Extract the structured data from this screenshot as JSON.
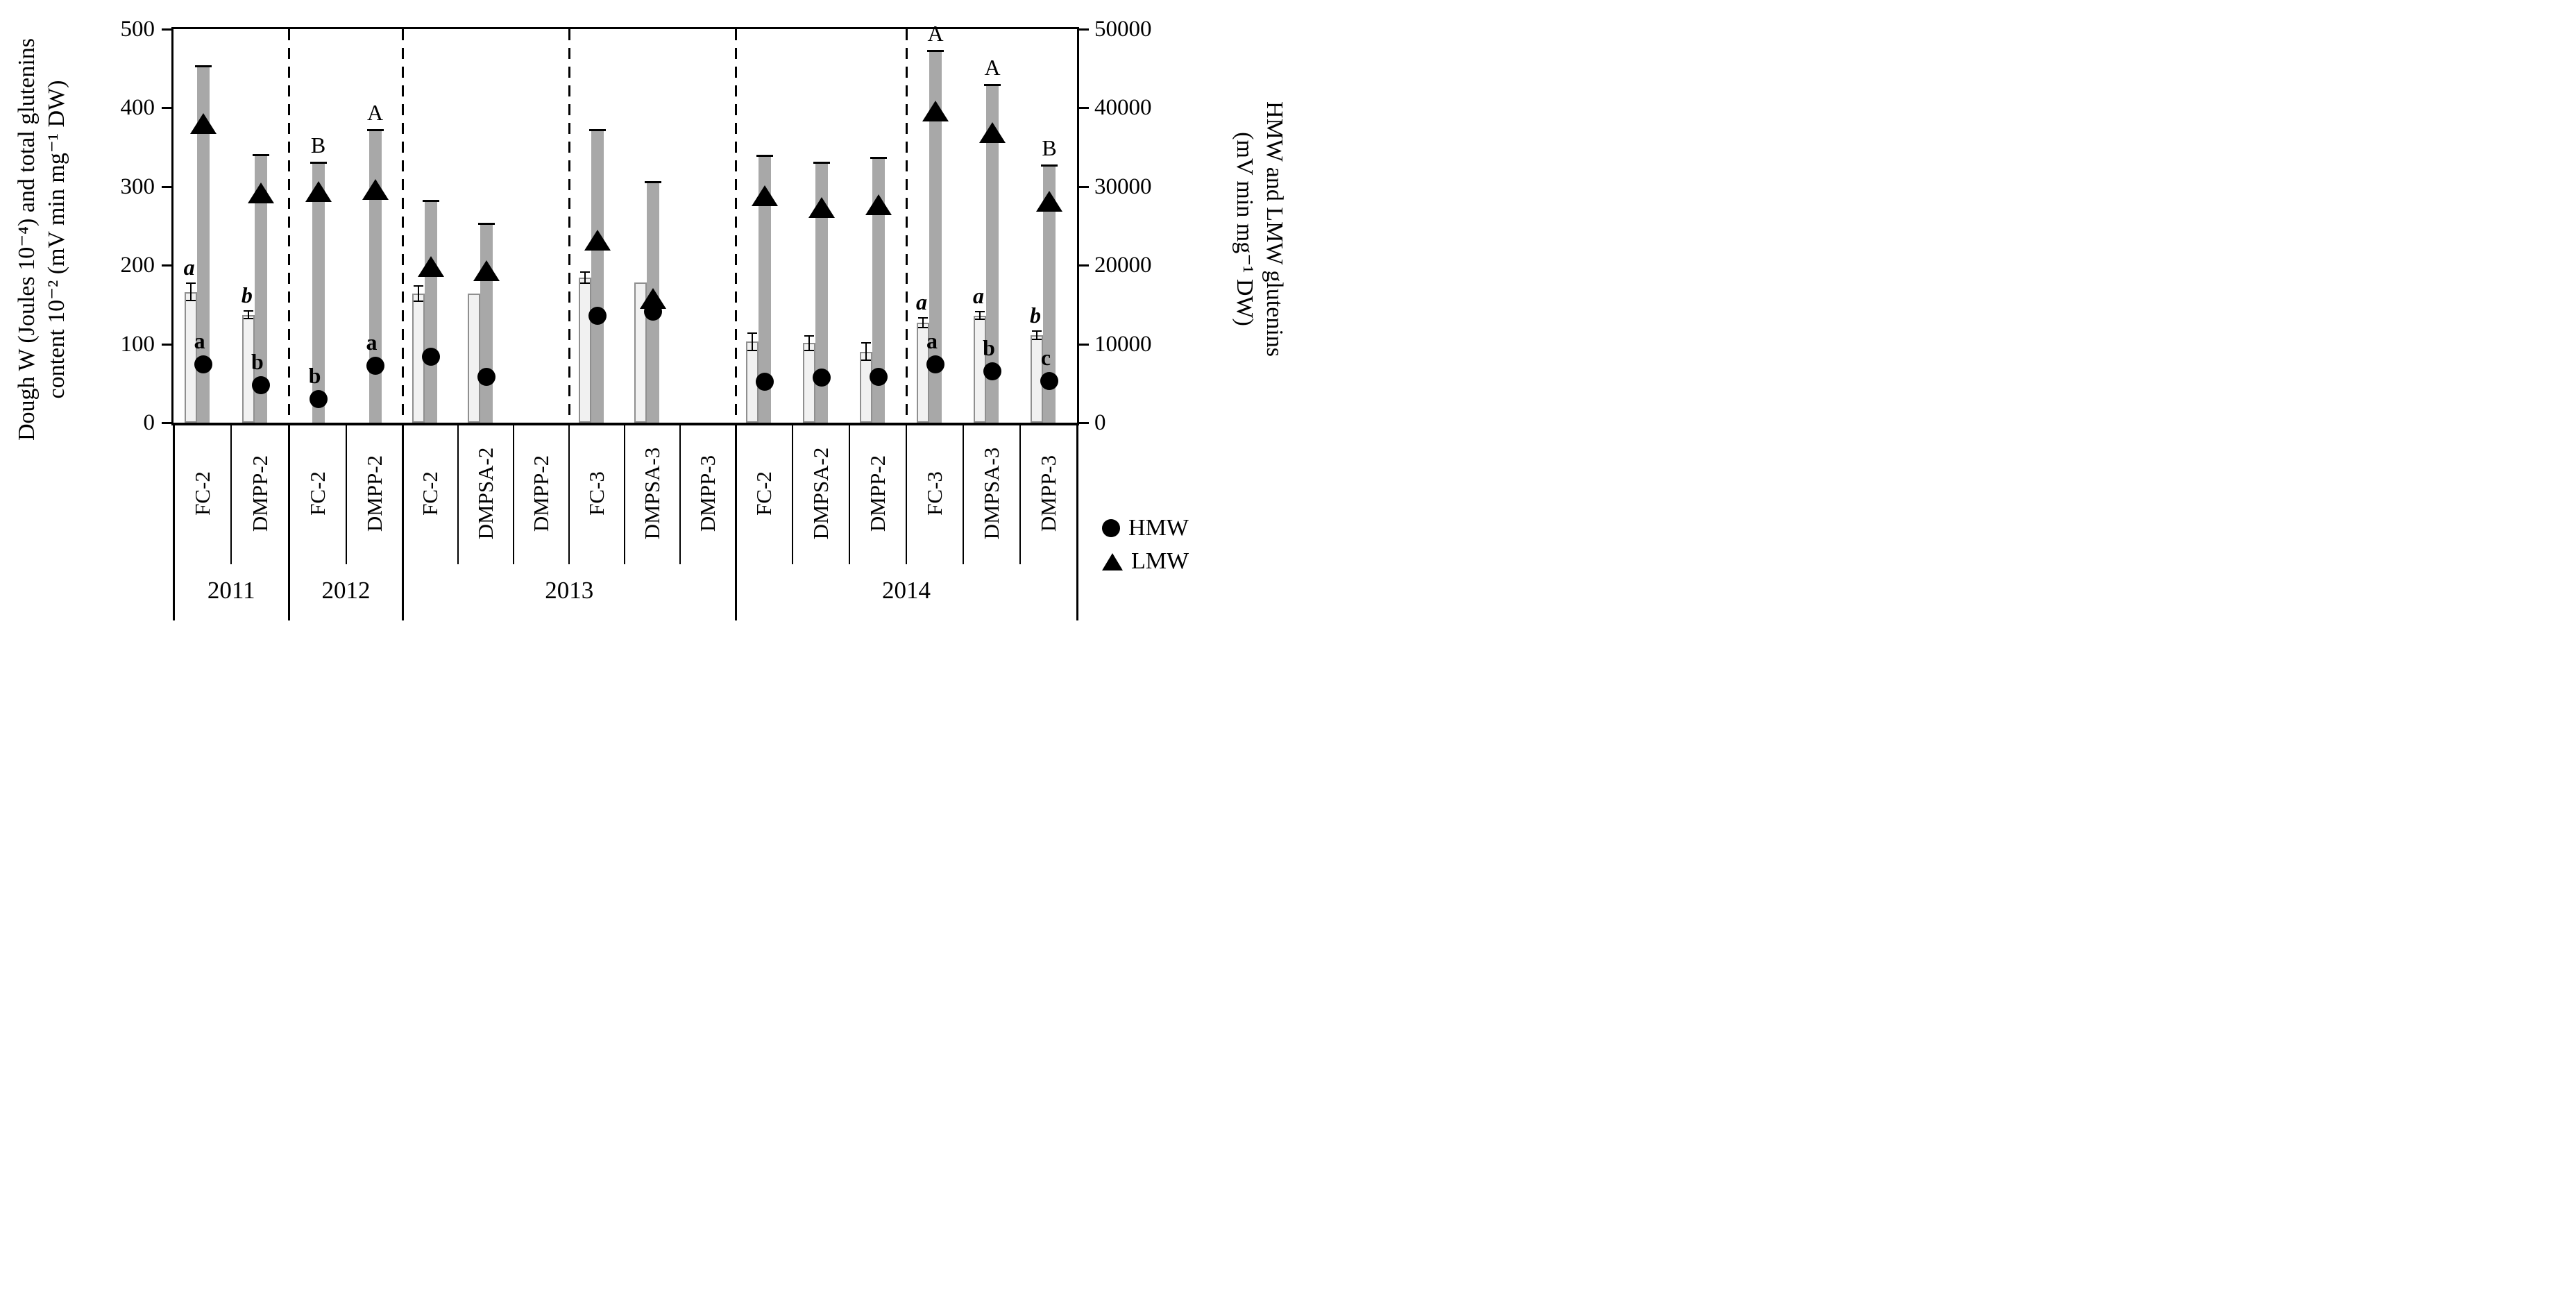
{
  "chart_data": {
    "type": "bar",
    "description_units": {
      "dough_w": "Joules 10-4 (plotted on left axis)",
      "total_glutenins": "mV min mg-1 DW (plotted as value/100 on left axis)",
      "hmw": "mV min mg-1 DW (right axis, circle marker)",
      "lmw": "mV min mg-1 DW (right axis, triangle marker)"
    },
    "left_axis": {
      "label_lines": [
        "Dough W (Joules 10⁻⁴) and total glutenins",
        "content 10⁻² (mV min mg⁻¹ DW)"
      ],
      "min": 0,
      "max": 500,
      "ticks": [
        "0",
        "100",
        "200",
        "300",
        "400",
        "500"
      ]
    },
    "right_axis": {
      "label_lines": [
        "HMW and LMW glutenins",
        "(mV min mg⁻¹ DW)"
      ],
      "min": 0,
      "max": 50000,
      "ticks": [
        "0",
        "10000",
        "20000",
        "30000",
        "40000",
        "50000"
      ]
    },
    "legend": [
      {
        "marker": "circle",
        "label": "HMW"
      },
      {
        "marker": "triangle",
        "label": "LMW"
      }
    ],
    "groups": [
      {
        "year": "2011",
        "categories": [
          {
            "label": "FC-2",
            "dough_w": 166,
            "dough_w_err": 11,
            "dough_w_letter": "a",
            "total_glutenins": 45300,
            "total_glutenins_letter": null,
            "lmw": 38000,
            "hmw": 7400,
            "hmw_letter": "a"
          },
          {
            "label": "DMPP-2",
            "dough_w": 137,
            "dough_w_err": 5,
            "dough_w_letter": "b",
            "total_glutenins": 34000,
            "total_glutenins_letter": null,
            "lmw": 29200,
            "hmw": 4800,
            "hmw_letter": "b"
          }
        ]
      },
      {
        "year": "2012",
        "categories": [
          {
            "label": "FC-2",
            "dough_w": null,
            "dough_w_err": null,
            "dough_w_letter": null,
            "total_glutenins": 33000,
            "total_glutenins_letter": "B",
            "lmw": 29300,
            "hmw": 3000,
            "hmw_letter": "b"
          },
          {
            "label": "DMPP-2",
            "dough_w": null,
            "dough_w_err": null,
            "dough_w_letter": null,
            "total_glutenins": 37200,
            "total_glutenins_letter": "A",
            "lmw": 29600,
            "hmw": 7200,
            "hmw_letter": "a"
          }
        ]
      },
      {
        "year": "2013",
        "categories": [
          {
            "label": "FC-2",
            "dough_w": 164,
            "dough_w_err": 10,
            "dough_w_letter": null,
            "total_glutenins": 28200,
            "total_glutenins_letter": null,
            "lmw": 19800,
            "hmw": 8400,
            "hmw_letter": null
          },
          {
            "label": "DMPSA-2",
            "dough_w": 164,
            "dough_w_err": null,
            "dough_w_letter": null,
            "total_glutenins": 25300,
            "total_glutenins_letter": null,
            "lmw": 19300,
            "hmw": 5800,
            "hmw_letter": null
          },
          {
            "label": "DMPP-2",
            "dough_w": null,
            "dough_w_err": null,
            "dough_w_letter": null,
            "total_glutenins": null,
            "total_glutenins_letter": null,
            "lmw": null,
            "hmw": null,
            "hmw_letter": null
          },
          {
            "label": "FC-3",
            "dough_w": 184,
            "dough_w_err": 7,
            "dough_w_letter": null,
            "total_glutenins": 37200,
            "total_glutenins_letter": null,
            "lmw": 23200,
            "hmw": 13600,
            "hmw_letter": null
          },
          {
            "label": "DMPSA-3",
            "dough_w": 178,
            "dough_w_err": null,
            "dough_w_letter": null,
            "total_glutenins": 30600,
            "total_glutenins_letter": null,
            "lmw": 15800,
            "hmw": 14100,
            "hmw_letter": null
          },
          {
            "label": "DMPP-3",
            "dough_w": null,
            "dough_w_err": null,
            "dough_w_letter": null,
            "total_glutenins": null,
            "total_glutenins_letter": null,
            "lmw": null,
            "hmw": null,
            "hmw_letter": null
          }
        ]
      },
      {
        "year": "2014",
        "categories": [
          {
            "label": "FC-2",
            "dough_w": 103,
            "dough_w_err": 11,
            "dough_w_letter": null,
            "total_glutenins": 33900,
            "total_glutenins_letter": null,
            "lmw": 28800,
            "hmw": 5200,
            "hmw_letter": null
          },
          {
            "label": "DMPSA-2",
            "dough_w": 101,
            "dough_w_err": 9,
            "dough_w_letter": null,
            "total_glutenins": 33000,
            "total_glutenins_letter": null,
            "lmw": 27300,
            "hmw": 5700,
            "hmw_letter": null
          },
          {
            "label": "DMPP-2",
            "dough_w": 90,
            "dough_w_err": 11,
            "dough_w_letter": null,
            "total_glutenins": 33700,
            "total_glutenins_letter": null,
            "lmw": 27700,
            "hmw": 5800,
            "hmw_letter": null
          },
          {
            "label": "FC-3",
            "dough_w": 127,
            "dough_w_err": 6,
            "dough_w_letter": "a",
            "total_glutenins": 47200,
            "total_glutenins_letter": "A",
            "lmw": 39600,
            "hmw": 7400,
            "hmw_letter": "a"
          },
          {
            "label": "DMPSA-3",
            "dough_w": 136,
            "dough_w_err": 5,
            "dough_w_letter": "a",
            "total_glutenins": 42900,
            "total_glutenins_letter": "A",
            "lmw": 36800,
            "hmw": 6500,
            "hmw_letter": "b"
          },
          {
            "label": "DMPP-3",
            "dough_w": 111,
            "dough_w_err": 5,
            "dough_w_letter": "b",
            "total_glutenins": 32700,
            "total_glutenins_letter": "B",
            "lmw": 28100,
            "hmw": 5300,
            "hmw_letter": "c"
          }
        ]
      }
    ]
  }
}
